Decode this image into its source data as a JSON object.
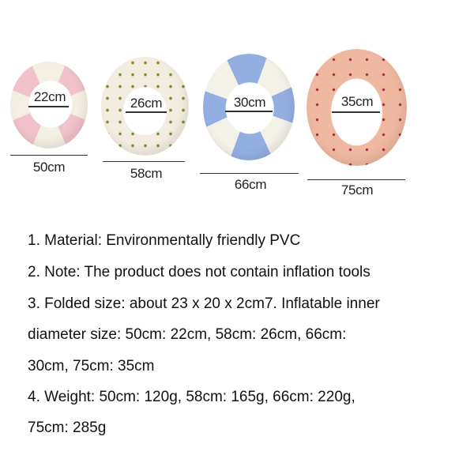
{
  "rings": [
    {
      "inner": "22cm",
      "outer": "50cm",
      "pattern": "pink-cream-stripes",
      "colors": [
        "#f1c2cb",
        "#f4efe3"
      ]
    },
    {
      "inner": "26cm",
      "outer": "58cm",
      "pattern": "cream-green-dots",
      "colors": [
        "#f2ede0",
        "#7f8f3a"
      ]
    },
    {
      "inner": "30cm",
      "outer": "66cm",
      "pattern": "blue-cream-stripes",
      "colors": [
        "#93afe2",
        "#f4f1e8"
      ]
    },
    {
      "inner": "35cm",
      "outer": "75cm",
      "pattern": "peach-cherry-dots",
      "colors": [
        "#efb8a1",
        "#a8323a"
      ]
    }
  ],
  "specs": [
    "1. Material: Environmentally friendly PVC",
    "2. Note: The product does not contain inflation tools",
    "3. Folded size: about 23 x 20 x 2cm7. Inflatable inner",
    "diameter size: 50cm: 22cm, 58cm: 26cm, 66cm:",
    "30cm, 75cm: 35cm",
    "4. Weight: 50cm: 120g, 58cm: 165g, 66cm: 220g,",
    "75cm: 285g"
  ]
}
